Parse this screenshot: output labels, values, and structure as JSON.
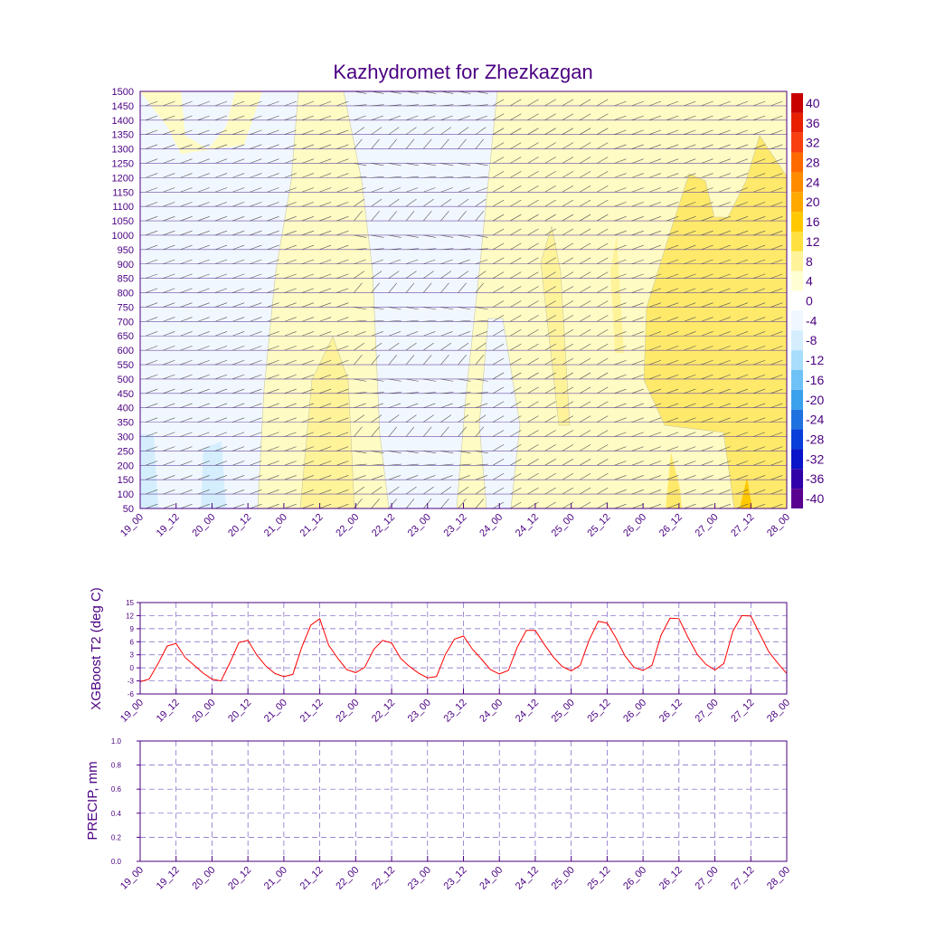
{
  "title": "Kazhydromet for Zhezkazgan",
  "time_labels": [
    "19_00",
    "19_12",
    "20_00",
    "20_12",
    "21_00",
    "21_12",
    "22_00",
    "22_12",
    "23_00",
    "23_12",
    "24_00",
    "24_12",
    "25_00",
    "25_12",
    "26_00",
    "26_12",
    "27_00",
    "27_12",
    "28_00"
  ],
  "colors": {
    "title": "#4b0082",
    "axis": "#4b0082",
    "t2_line": "#ff0000",
    "grid": "#7a5cc4"
  },
  "chart_data": [
    {
      "type": "heatmap",
      "title": "Kazhydromet for Zhezkazgan",
      "ylabel": "",
      "x_ticks": [
        "19_00",
        "19_12",
        "20_00",
        "20_12",
        "21_00",
        "21_12",
        "22_00",
        "22_12",
        "23_00",
        "23_12",
        "24_00",
        "24_12",
        "25_00",
        "25_12",
        "26_00",
        "26_12",
        "27_00",
        "27_12",
        "28_00"
      ],
      "y_levels": [
        50,
        100,
        150,
        200,
        250,
        300,
        350,
        400,
        450,
        500,
        550,
        600,
        650,
        700,
        750,
        800,
        850,
        900,
        950,
        1000,
        1050,
        1100,
        1150,
        1200,
        1250,
        1300,
        1350,
        1400,
        1450,
        1500
      ],
      "ylim": [
        50,
        1500
      ],
      "colorbar": {
        "labels": [
          "40",
          "36",
          "32",
          "28",
          "24",
          "20",
          "16",
          "12",
          "8",
          "4",
          "0",
          "-4",
          "-8",
          "-12",
          "-16",
          "-20",
          "-24",
          "-28",
          "-32",
          "-36",
          "-40"
        ],
        "colors": [
          "#c80000",
          "#e82000",
          "#f84010",
          "#ff6a00",
          "#ff8c00",
          "#ffa800",
          "#ffc800",
          "#ffe040",
          "#fff39a",
          "#ffffd2",
          "#ffffff",
          "#f0f7ff",
          "#d4eefe",
          "#a8ddfb",
          "#6fc2f5",
          "#3aa2ec",
          "#1f72e0",
          "#0a3ed8",
          "#0a14c8",
          "#3000a8",
          "#5a0090"
        ]
      },
      "field_regions": [
        {
          "band": "cold_-4_0",
          "x_start": "19_00",
          "x_end": "20_12",
          "levels": [
            50,
            1500
          ]
        },
        {
          "band": "cold_-4_0",
          "x_start": "22_00",
          "x_end": "23_12",
          "levels": [
            50,
            1500
          ]
        },
        {
          "band": "warm_8_12",
          "x_start": "25_12",
          "x_end": "28_00",
          "levels": [
            50,
            1250
          ]
        },
        {
          "band": "warm_12_16",
          "x_start": "27_12",
          "x_end": "27_12",
          "levels": [
            50,
            200
          ]
        }
      ]
    },
    {
      "type": "line",
      "title": "",
      "xlabel": "",
      "ylabel": "XGBoost T2 (deg C)",
      "ylim": [
        -6,
        15
      ],
      "y_ticks": [
        "15",
        "12",
        "9",
        "6",
        "3",
        "0",
        "-3",
        "-6"
      ],
      "x_ticks": [
        "19_00",
        "19_12",
        "20_00",
        "20_12",
        "21_00",
        "21_12",
        "22_00",
        "22_12",
        "23_00",
        "23_12",
        "24_00",
        "24_12",
        "25_00",
        "25_12",
        "26_00",
        "26_12",
        "27_00",
        "27_12",
        "28_00"
      ],
      "series": [
        {
          "values": [
            -3.2,
            -2.6,
            1.0,
            5.0,
            5.6,
            2.4,
            0.6,
            -1.2,
            -2.6,
            -3.0,
            1.2,
            5.8,
            6.3,
            2.9,
            0.4,
            -1.3,
            -2.0,
            -1.5,
            4.8,
            9.8,
            11.3,
            5.2,
            2.2,
            -0.4,
            -1.1,
            0.1,
            4.2,
            6.3,
            5.7,
            2.2,
            0.3,
            -1.2,
            -2.3,
            -2.0,
            3.1,
            6.6,
            7.3,
            4.3,
            2.0,
            -0.4,
            -1.4,
            -0.6,
            4.8,
            8.6,
            8.6,
            5.4,
            2.5,
            0.3,
            -0.7,
            0.6,
            6.4,
            10.7,
            10.3,
            6.8,
            2.7,
            0.1,
            -0.6,
            0.6,
            7.5,
            11.4,
            11.3,
            7.0,
            3.2,
            0.8,
            -0.5,
            1.0,
            8.4,
            12.0,
            11.9,
            7.8,
            3.7,
            1.1,
            -1.3
          ]
        }
      ]
    },
    {
      "type": "line",
      "title": "",
      "xlabel": "",
      "ylabel": "PRECIP, mm",
      "ylim": [
        0,
        1.0
      ],
      "y_ticks": [
        "1.0",
        "0.8",
        "0.6",
        "0.4",
        "0.2",
        "0.0"
      ],
      "x_ticks": [
        "19_00",
        "19_12",
        "20_00",
        "20_12",
        "21_00",
        "21_12",
        "22_00",
        "22_12",
        "23_00",
        "23_12",
        "24_00",
        "24_12",
        "25_00",
        "25_12",
        "26_00",
        "26_12",
        "27_00",
        "27_12",
        "28_00"
      ],
      "series": [
        {
          "values": []
        }
      ]
    }
  ]
}
